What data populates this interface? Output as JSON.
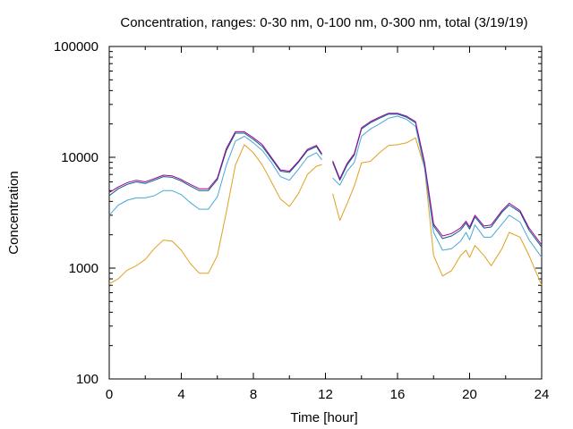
{
  "chart_data": {
    "type": "line",
    "title": "Concentration, ranges: 0-30 nm, 0-100 nm, 0-300 nm, total (3/19/19)",
    "xlabel": "Time [hour]",
    "ylabel": "Concentration",
    "xlim": [
      0,
      24
    ],
    "ylim": [
      100,
      100000
    ],
    "yscale": "log",
    "grid": false,
    "xticks": [
      0,
      4,
      8,
      12,
      16,
      20,
      24
    ],
    "yticks": [
      100,
      1000,
      10000,
      100000
    ],
    "xtick_labels": [
      "0",
      "4",
      "8",
      "12",
      "16",
      "20",
      "24"
    ],
    "ytick_labels": [
      "100",
      "1000",
      "10000",
      "100000"
    ],
    "series": [
      {
        "color": "#e0a020",
        "x": [
          0,
          0.5,
          1,
          1.5,
          2,
          2.5,
          3,
          3.5,
          4,
          4.5,
          5,
          5.5,
          6,
          6.5,
          7,
          7.5,
          8,
          8.5,
          9,
          9.5,
          10,
          10.5,
          11,
          11.5,
          11.8,
          null,
          12.4,
          12.8,
          13.2,
          13.6,
          14,
          14.5,
          15,
          15.5,
          16,
          16.5,
          17,
          17.5,
          18,
          18.5,
          19,
          19.5,
          19.8,
          20,
          20.3,
          20.8,
          21.2,
          21.8,
          22.2,
          22.8,
          23.3,
          24
        ],
        "y": [
          720,
          800,
          960,
          1050,
          1200,
          1500,
          1790,
          1750,
          1450,
          1100,
          900,
          900,
          1300,
          3200,
          8500,
          13000,
          11000,
          8500,
          6000,
          4200,
          3600,
          4700,
          7000,
          8300,
          8600,
          null,
          4700,
          2700,
          3800,
          5500,
          8900,
          9200,
          11000,
          12800,
          13000,
          13500,
          15000,
          8000,
          1300,
          850,
          950,
          1300,
          1450,
          1250,
          1600,
          1300,
          1050,
          1500,
          2100,
          1900,
          1300,
          700
        ]
      },
      {
        "color": "#4aa8d8",
        "x": [
          0,
          0.5,
          1,
          1.5,
          2,
          2.5,
          3,
          3.5,
          4,
          4.5,
          5,
          5.5,
          6,
          6.5,
          7,
          7.5,
          8,
          8.5,
          9,
          9.5,
          10,
          10.5,
          11,
          11.5,
          11.8,
          null,
          12.4,
          12.8,
          13.2,
          13.6,
          14,
          14.5,
          15,
          15.5,
          16,
          16.5,
          17,
          17.5,
          18,
          18.5,
          19,
          19.5,
          19.8,
          20,
          20.3,
          20.8,
          21.2,
          21.8,
          22.2,
          22.8,
          23.3,
          24
        ],
        "y": [
          3000,
          3700,
          4100,
          4300,
          4300,
          4500,
          5000,
          5000,
          4600,
          3900,
          3400,
          3400,
          4400,
          8500,
          14000,
          15500,
          13500,
          11500,
          9000,
          6700,
          6200,
          7800,
          10000,
          11000,
          9500,
          null,
          6500,
          5600,
          7500,
          9000,
          15500,
          18000,
          20000,
          22500,
          23500,
          22000,
          19000,
          8000,
          2100,
          1450,
          1500,
          1750,
          2100,
          1800,
          2450,
          1900,
          1900,
          2500,
          3000,
          2600,
          1800,
          1250
        ]
      },
      {
        "color": "#006080",
        "x": [
          0,
          0.5,
          1,
          1.5,
          2,
          2.5,
          3,
          3.5,
          4,
          4.5,
          5,
          5.5,
          6,
          6.5,
          7,
          7.5,
          8,
          8.5,
          9,
          9.5,
          10,
          10.5,
          11,
          11.5,
          11.8,
          null,
          12.4,
          12.8,
          13.2,
          13.6,
          14,
          14.5,
          15,
          15.5,
          16,
          16.5,
          17,
          17.5,
          18,
          18.5,
          19,
          19.5,
          19.8,
          20,
          20.3,
          20.8,
          21.2,
          21.8,
          22.2,
          22.8,
          23.3,
          24
        ],
        "y": [
          4500,
          5200,
          5700,
          6000,
          5800,
          6200,
          6700,
          6600,
          6100,
          5500,
          5000,
          5000,
          6300,
          11500,
          16500,
          16500,
          14500,
          12500,
          9700,
          7500,
          7300,
          9000,
          11500,
          12500,
          10500,
          null,
          9000,
          6200,
          8500,
          10500,
          18000,
          20500,
          22500,
          24500,
          24500,
          23000,
          20500,
          8700,
          2400,
          1850,
          1950,
          2200,
          2550,
          2250,
          2900,
          2300,
          2350,
          3200,
          3700,
          3200,
          2200,
          1550
        ]
      },
      {
        "color": "#a000a0",
        "x": [
          0,
          0.5,
          1,
          1.5,
          2,
          2.5,
          3,
          3.5,
          4,
          4.5,
          5,
          5.5,
          6,
          6.5,
          7,
          7.5,
          8,
          8.5,
          9,
          9.5,
          10,
          10.5,
          11,
          11.5,
          11.8,
          null,
          12.4,
          12.8,
          13.2,
          13.6,
          14,
          14.5,
          15,
          15.5,
          16,
          16.5,
          17,
          17.5,
          18,
          18.5,
          19,
          19.5,
          19.8,
          20,
          20.3,
          20.8,
          21.2,
          21.8,
          22.2,
          22.8,
          23.3,
          24
        ],
        "y": [
          4800,
          5400,
          5900,
          6200,
          6000,
          6400,
          6900,
          6800,
          6300,
          5700,
          5200,
          5200,
          6500,
          12000,
          17000,
          17000,
          15000,
          13000,
          10000,
          7700,
          7500,
          9200,
          11800,
          12800,
          10800,
          null,
          9300,
          6400,
          8800,
          10800,
          18500,
          21000,
          23000,
          25000,
          25000,
          23500,
          21000,
          9000,
          2500,
          1950,
          2050,
          2300,
          2650,
          2350,
          3000,
          2400,
          2450,
          3300,
          3850,
          3300,
          2300,
          1620
        ]
      }
    ]
  }
}
